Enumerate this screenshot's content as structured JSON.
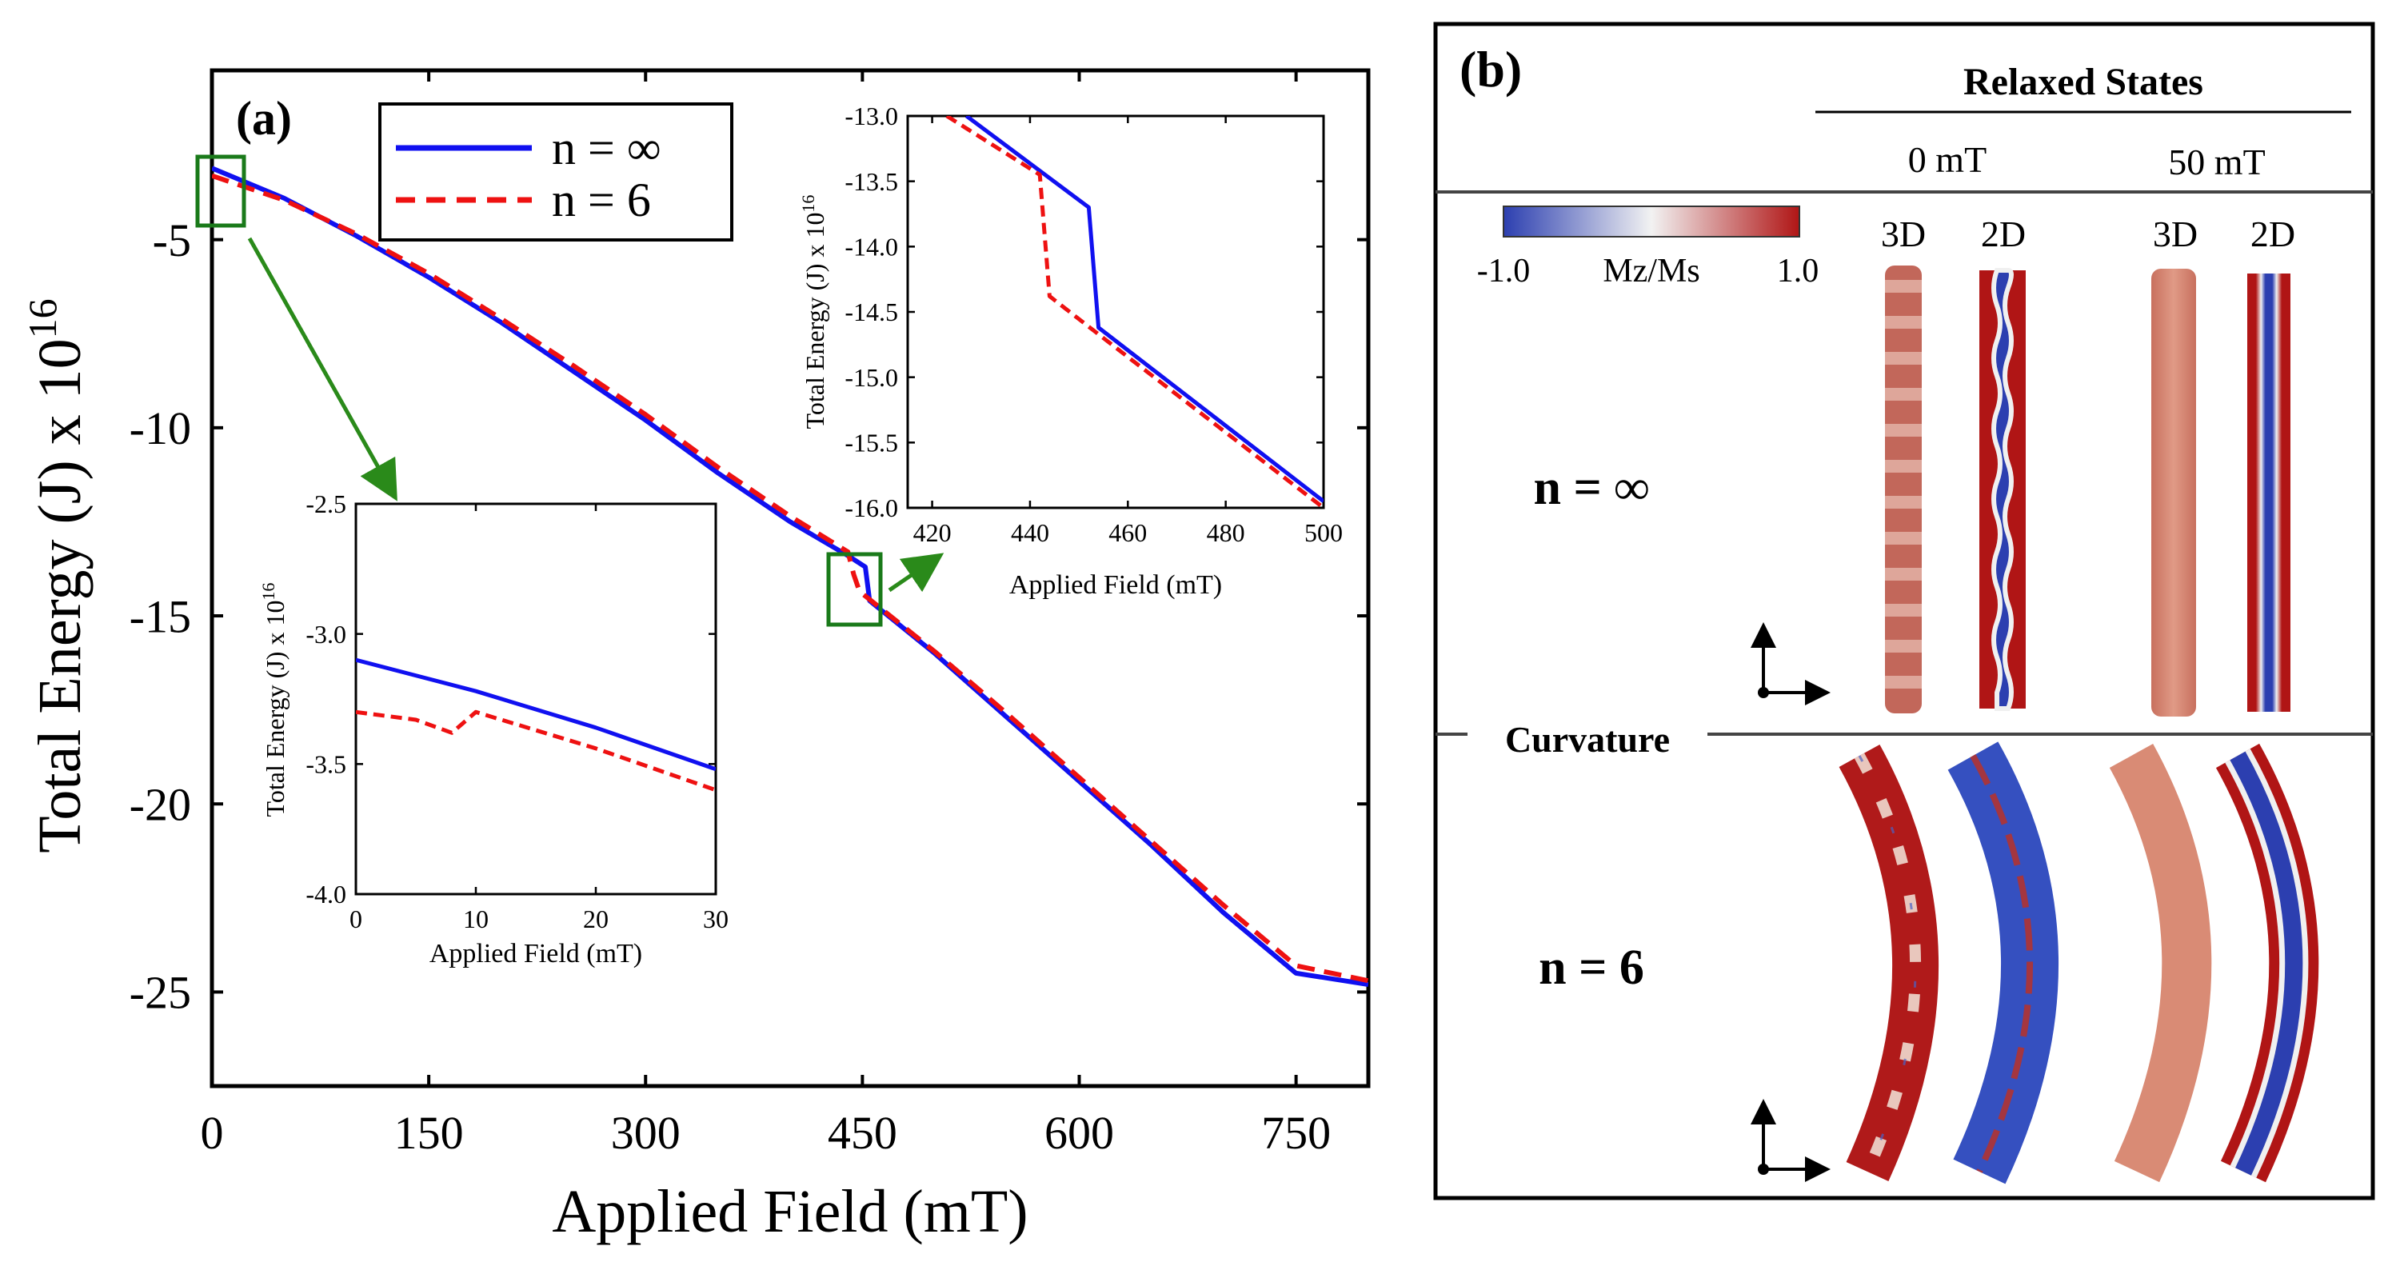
{
  "colors": {
    "series_inf": "#1010f0",
    "series_6": "#ee1111",
    "box": "#1a7a1a",
    "arrow": "#2a8a1a",
    "mz_neg": "#2c3fb0",
    "mz_mid": "#f2f2f2",
    "mz_pos": "#b01515",
    "tube_light": "#d88a76"
  },
  "chart_data": [
    {
      "id": "main",
      "type": "line",
      "panel_label": "(a)",
      "xlabel": "Applied Field (mT)",
      "ylabel": "Total Energy (J) x 10",
      "ylabel_sup": "16",
      "xlim": [
        0,
        800
      ],
      "ylim": [
        -27.5,
        -0.5
      ],
      "xticks": [
        0,
        150,
        300,
        450,
        600,
        750
      ],
      "yticks": [
        -5,
        -10,
        -15,
        -20,
        -25
      ],
      "legend_position": "top-left",
      "series": [
        {
          "name": "n = ∞",
          "style": "solid",
          "x": [
            0,
            50,
            100,
            150,
            200,
            250,
            300,
            350,
            400,
            440,
            452,
            455,
            500,
            550,
            600,
            650,
            700,
            750,
            800
          ],
          "y": [
            -3.1,
            -3.9,
            -4.9,
            -6.0,
            -7.2,
            -8.5,
            -9.8,
            -11.2,
            -12.5,
            -13.4,
            -13.7,
            -14.6,
            -16.0,
            -17.7,
            -19.4,
            -21.1,
            -22.9,
            -24.5,
            -24.8
          ]
        },
        {
          "name": "n = 6",
          "style": "dashed",
          "x": [
            0,
            50,
            100,
            150,
            200,
            250,
            300,
            350,
            400,
            440,
            444,
            448,
            500,
            550,
            600,
            650,
            700,
            750,
            800
          ],
          "y": [
            -3.3,
            -3.95,
            -4.85,
            -5.9,
            -7.1,
            -8.35,
            -9.65,
            -11.05,
            -12.35,
            -13.3,
            -13.9,
            -14.35,
            -15.95,
            -17.6,
            -19.3,
            -21.0,
            -22.7,
            -24.3,
            -24.7
          ]
        }
      ]
    },
    {
      "id": "inset_high",
      "type": "line",
      "xlabel": "Applied Field (mT)",
      "ylabel": "Total Energy (J) x 10",
      "ylabel_sup": "16",
      "xlim": [
        415,
        500
      ],
      "ylim": [
        -16.0,
        -13.0
      ],
      "xticks": [
        420,
        440,
        460,
        480,
        500
      ],
      "yticks": [
        -13.0,
        -13.5,
        -14.0,
        -14.5,
        -15.0,
        -15.5,
        -16.0
      ],
      "series": [
        {
          "name": "n = ∞",
          "style": "solid",
          "x": [
            427,
            452,
            454,
            500
          ],
          "y": [
            -13.0,
            -13.7,
            -14.62,
            -15.95
          ]
        },
        {
          "name": "n = 6",
          "style": "dashed",
          "x": [
            423,
            442,
            444,
            455,
            500
          ],
          "y": [
            -13.0,
            -13.45,
            -14.38,
            -14.7,
            -16.0
          ]
        }
      ]
    },
    {
      "id": "inset_low",
      "type": "line",
      "xlabel": "Applied Field (mT)",
      "ylabel": "Total Energy (J) x 10",
      "ylabel_sup": "16",
      "xlim": [
        0,
        30
      ],
      "ylim": [
        -4.0,
        -2.5
      ],
      "xticks": [
        0,
        10,
        20,
        30
      ],
      "yticks": [
        -2.5,
        -3.0,
        -3.5,
        -4.0
      ],
      "series": [
        {
          "name": "n = ∞",
          "style": "solid",
          "x": [
            0,
            10,
            20,
            30
          ],
          "y": [
            -3.1,
            -3.22,
            -3.36,
            -3.52
          ]
        },
        {
          "name": "n = 6",
          "style": "dashed",
          "x": [
            0,
            5,
            8,
            10,
            20,
            30
          ],
          "y": [
            -3.3,
            -3.33,
            -3.38,
            -3.3,
            -3.44,
            -3.6
          ]
        }
      ]
    }
  ],
  "panel_b": {
    "label": "(b)",
    "header": "Relaxed States",
    "field_0": "0 mT",
    "field_50": "50 mT",
    "colorbar_min": "-1.0",
    "colorbar_label": "Mz/Ms",
    "colorbar_max": "1.0",
    "view_3d": "3D",
    "view_2d": "2D",
    "row_inf": "n = ∞",
    "divider": "Curvature",
    "row_6": "n = 6"
  }
}
